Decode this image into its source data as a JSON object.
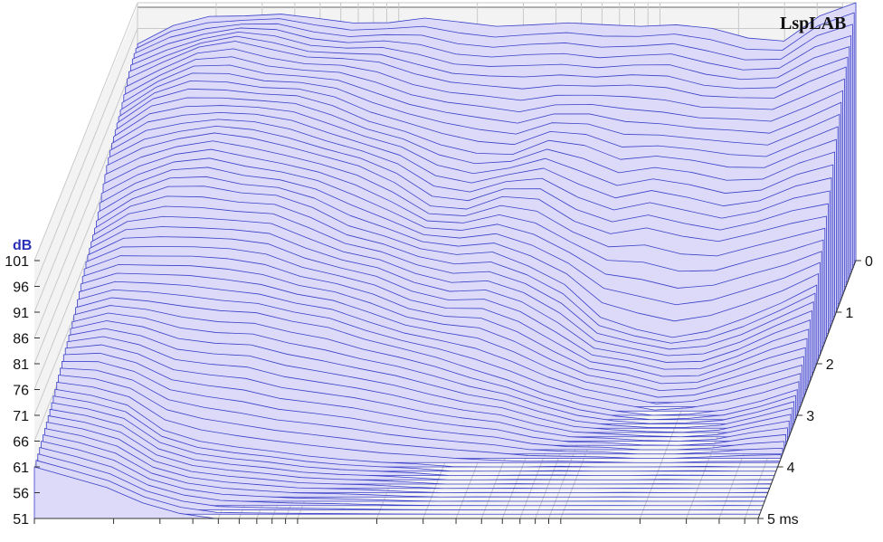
{
  "brand": {
    "label": "LspLAB"
  },
  "chart_data": {
    "type": "waterfall",
    "title": "",
    "ylabel": "dB",
    "y_ticks": [
      "101",
      "96",
      "91",
      "86",
      "81",
      "76",
      "71",
      "66",
      "61",
      "56",
      "51"
    ],
    "ylim": [
      51,
      101
    ],
    "time_ticks": [
      "0",
      "1",
      "2",
      "3",
      "4",
      "5 ms"
    ],
    "time_range_ms": [
      0,
      5
    ],
    "x_axis": "log frequency (no labels printed)",
    "grid": true,
    "colors": {
      "fill": "#dcdaf8",
      "line": "#3a3fc8",
      "axis_text": "#111111",
      "y_title": "#2a2fb8"
    },
    "slices": [
      {
        "t_ms": 0.0,
        "profile": [
          93,
          96,
          98.5,
          99,
          98.5,
          97.5,
          97.5,
          97.5,
          97.5,
          97,
          97,
          96.8,
          96.5,
          96.8,
          97,
          96.5,
          95.5,
          94.5,
          94,
          98,
          101
        ]
      },
      {
        "t_ms": 0.5,
        "profile": [
          91,
          95,
          97.5,
          98,
          97,
          96,
          95,
          94,
          92.5,
          91,
          89.5,
          89,
          90.5,
          90,
          89.5,
          89.5,
          88.5,
          87.5,
          87,
          91,
          94
        ]
      },
      {
        "t_ms": 1.0,
        "profile": [
          88,
          92,
          94,
          94.5,
          93.5,
          92.5,
          91,
          88.5,
          86,
          83,
          82,
          82,
          84,
          83,
          81,
          81.5,
          80,
          79,
          79.5,
          82,
          84
        ]
      },
      {
        "t_ms": 1.5,
        "profile": [
          84,
          88,
          90,
          90.5,
          89.5,
          88.5,
          86.5,
          84,
          81,
          77,
          76,
          78,
          78,
          74,
          71,
          72,
          71,
          70,
          71,
          73,
          75
        ]
      },
      {
        "t_ms": 2.0,
        "profile": [
          79,
          83,
          85,
          85.5,
          84.5,
          83.5,
          81,
          78,
          76,
          73,
          72,
          73,
          70,
          66,
          60,
          58,
          56,
          57,
          60,
          63,
          66
        ]
      },
      {
        "t_ms": 3.0,
        "profile": [
          72,
          74,
          73,
          72,
          71.5,
          71,
          69,
          68,
          66,
          64,
          62,
          60,
          58,
          55,
          53,
          52,
          51,
          51,
          52,
          54,
          56
        ]
      },
      {
        "t_ms": 4.0,
        "profile": [
          66,
          65,
          63,
          58,
          56,
          55,
          54,
          53,
          52.5,
          52,
          51.5,
          51,
          51,
          51,
          51,
          51,
          51,
          51,
          51,
          51,
          51
        ]
      },
      {
        "t_ms": 5.0,
        "profile": [
          61,
          59,
          57,
          54,
          52,
          51,
          51,
          51,
          51,
          51,
          51,
          51,
          51,
          51,
          51,
          51,
          51,
          51,
          51,
          51,
          51
        ]
      }
    ]
  }
}
